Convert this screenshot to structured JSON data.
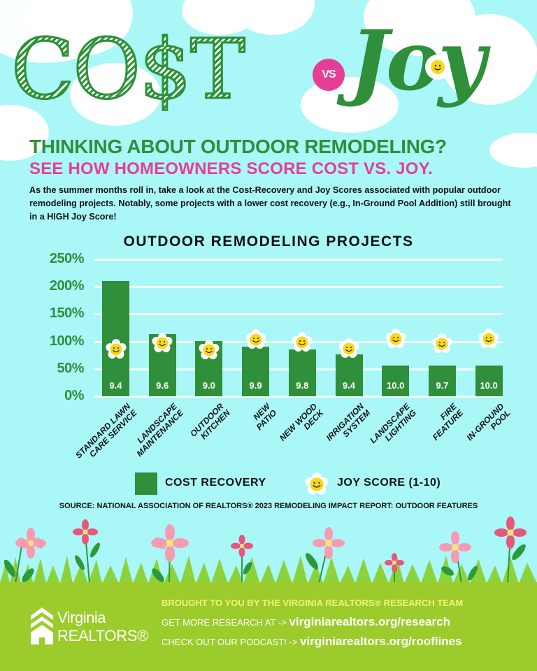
{
  "hero": {
    "cost_word": "CO$T",
    "vs_badge": "VS",
    "joy_word": "Joy"
  },
  "headline": {
    "line1": "THINKING ABOUT OUTDOOR REMODELING?",
    "line2": "SEE HOW HOMEOWNERS SCORE COST VS. JOY."
  },
  "intro": "As the summer months roll in, take a look at the Cost-Recovery and Joy Scores associated with popular outdoor remodeling projects. Notably, some projects with a lower cost recovery (e.g., In-Ground Pool Addition) still brought in a HIGH Joy Score!",
  "colors": {
    "bar": "#2f8f3a",
    "accent_pink": "#e63e96",
    "background": "#aaf7f8",
    "footer": "#9ccc2c",
    "footer_highlight": "#f5f27a"
  },
  "chart_data": {
    "type": "bar",
    "title": "OUTDOOR REMODELING PROJECTS",
    "xlabel": "",
    "ylabel": "",
    "ylim": [
      0,
      250
    ],
    "yticks": [
      "250%",
      "200%",
      "150%",
      "100%",
      "50%",
      "0%"
    ],
    "grid": true,
    "legend_position": "bottom",
    "categories": [
      "STANDARD LAWN CARE SERVICE",
      "LANDSCAPE MAINTENANCE",
      "OUTDOOR KITCHEN",
      "NEW PATIO",
      "NEW WOOD DECK",
      "IRRIGATION SYSTEM",
      "LANDSCAPE LIGHTING",
      "FIRE FEATURE",
      "IN-GROUND POOL"
    ],
    "category_lines": [
      [
        "STANDARD LAWN",
        "CARE SERVICE"
      ],
      [
        "LANDSCAPE",
        "MAINTENANCE"
      ],
      [
        "OUTDOOR",
        "KITCHEN"
      ],
      [
        "NEW",
        "PATIO"
      ],
      [
        "NEW WOOD",
        "DECK"
      ],
      [
        "IRRIGATION",
        "SYSTEM"
      ],
      [
        "LANDSCAPE",
        "LIGHTING"
      ],
      [
        "FIRE",
        "FEATURE"
      ],
      [
        "IN-GROUND",
        "POOL"
      ]
    ],
    "series": [
      {
        "name": "COST RECOVERY",
        "unit": "%",
        "values": [
          210,
          113,
          101,
          91,
          85,
          77,
          56,
          56,
          56
        ]
      },
      {
        "name": "JOY SCORE (1-10)",
        "values": [
          9.4,
          9.6,
          9.0,
          9.9,
          9.8,
          9.4,
          10.0,
          9.7,
          10.0
        ]
      }
    ],
    "bar_labels": [
      "9.4",
      "9.6",
      "9.0",
      "9.9",
      "9.8",
      "9.4",
      "10.0",
      "9.7",
      "10.0"
    ],
    "joy_marker_positions_pct": [
      85,
      97,
      84,
      103,
      98,
      87,
      105,
      96,
      105
    ]
  },
  "legend": {
    "cost": "COST RECOVERY",
    "joy": "JOY SCORE (1-10)"
  },
  "source": "SOURCE: NATIONAL ASSOCIATION OF REALTORS® 2023 REMODELING IMPACT REPORT: OUTDOOR FEATURES",
  "footer": {
    "logo_line1": "Virginia",
    "logo_line2": "REALTORS®",
    "brought_by": "BROUGHT TO YOU BY THE VIRGINIA REALTORS® RESEARCH TEAM",
    "research_prefix": "GET MORE RESEARCH AT -> ",
    "research_link": "virginiarealtors.org/research",
    "podcast_prefix": "CHECK OUT OUR PODCAST! -> ",
    "podcast_link": "virginiarealtors.org/rooflines"
  }
}
